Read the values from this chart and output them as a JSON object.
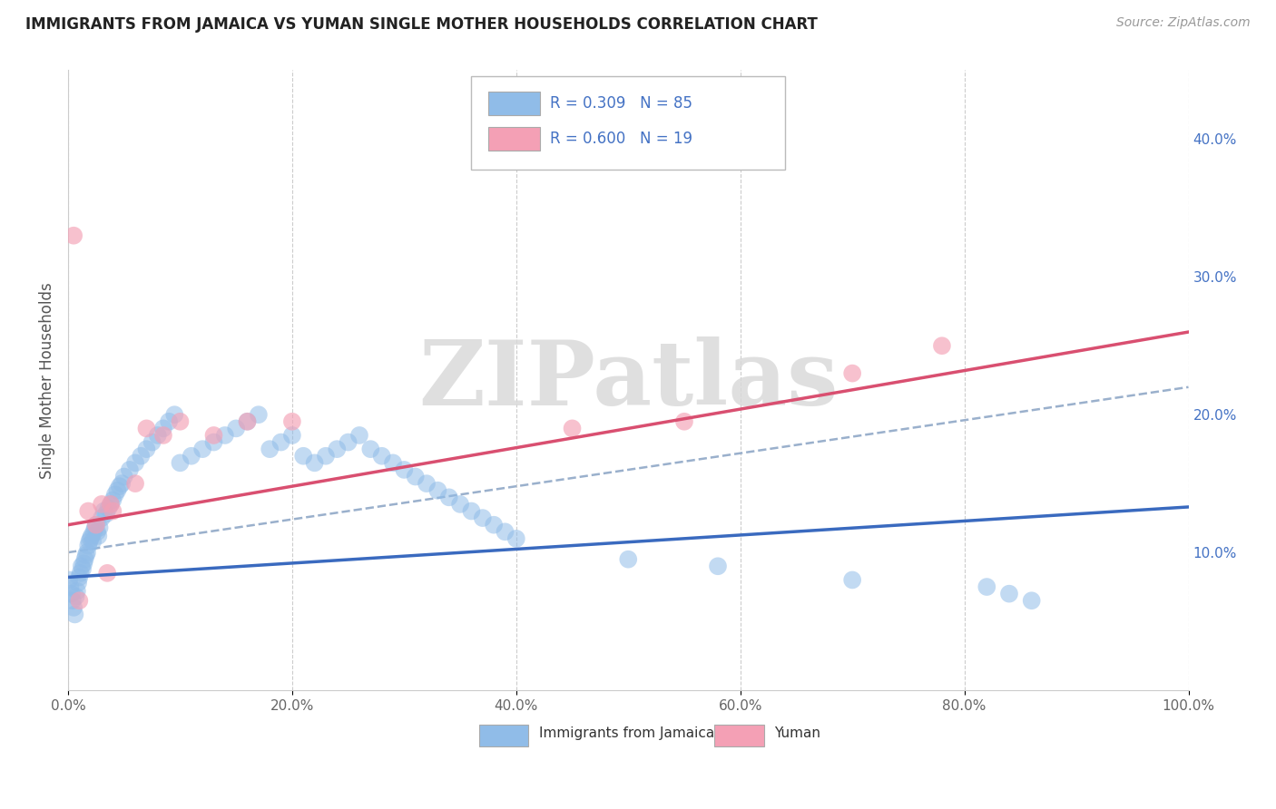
{
  "title": "IMMIGRANTS FROM JAMAICA VS YUMAN SINGLE MOTHER HOUSEHOLDS CORRELATION CHART",
  "source": "Source: ZipAtlas.com",
  "ylabel": "Single Mother Households",
  "legend_label1": "Immigrants from Jamaica",
  "legend_label2": "Yuman",
  "R1": 0.309,
  "N1": 85,
  "R2": 0.6,
  "N2": 19,
  "color_blue": "#90bce8",
  "color_pink": "#f4a0b5",
  "color_blue_line": "#3a6abf",
  "color_pink_line": "#d94f70",
  "color_dash": "#9ab0cc",
  "xlim": [
    0,
    1.0
  ],
  "ylim": [
    0,
    0.45
  ],
  "xticks": [
    0.0,
    0.2,
    0.4,
    0.6,
    0.8,
    1.0
  ],
  "xticklabels": [
    "0.0%",
    "20.0%",
    "40.0%",
    "60.0%",
    "80.0%",
    "100.0%"
  ],
  "yticks_left": [],
  "yticks_right": [
    0.1,
    0.2,
    0.3,
    0.4
  ],
  "yticklabels_right": [
    "10.0%",
    "20.0%",
    "30.0%",
    "40.0%"
  ],
  "watermark": "ZIPatlas",
  "background_color": "#ffffff",
  "jamaica_x": [
    0.001,
    0.002,
    0.003,
    0.004,
    0.005,
    0.006,
    0.007,
    0.008,
    0.009,
    0.01,
    0.011,
    0.012,
    0.013,
    0.014,
    0.015,
    0.016,
    0.017,
    0.018,
    0.019,
    0.02,
    0.021,
    0.022,
    0.023,
    0.024,
    0.025,
    0.026,
    0.027,
    0.028,
    0.03,
    0.032,
    0.034,
    0.036,
    0.038,
    0.04,
    0.042,
    0.044,
    0.046,
    0.048,
    0.05,
    0.055,
    0.06,
    0.065,
    0.07,
    0.075,
    0.08,
    0.085,
    0.09,
    0.095,
    0.1,
    0.11,
    0.12,
    0.13,
    0.14,
    0.15,
    0.16,
    0.17,
    0.18,
    0.19,
    0.2,
    0.21,
    0.22,
    0.23,
    0.24,
    0.25,
    0.26,
    0.27,
    0.28,
    0.29,
    0.3,
    0.31,
    0.32,
    0.33,
    0.34,
    0.35,
    0.36,
    0.37,
    0.38,
    0.39,
    0.4,
    0.5,
    0.58,
    0.7,
    0.82,
    0.84,
    0.86
  ],
  "jamaica_y": [
    0.08,
    0.075,
    0.07,
    0.065,
    0.06,
    0.055,
    0.068,
    0.072,
    0.078,
    0.082,
    0.085,
    0.09,
    0.088,
    0.092,
    0.095,
    0.098,
    0.1,
    0.105,
    0.108,
    0.11,
    0.112,
    0.108,
    0.115,
    0.118,
    0.12,
    0.115,
    0.112,
    0.118,
    0.125,
    0.13,
    0.128,
    0.132,
    0.135,
    0.138,
    0.142,
    0.145,
    0.148,
    0.15,
    0.155,
    0.16,
    0.165,
    0.17,
    0.175,
    0.18,
    0.185,
    0.19,
    0.195,
    0.2,
    0.165,
    0.17,
    0.175,
    0.18,
    0.185,
    0.19,
    0.195,
    0.2,
    0.175,
    0.18,
    0.185,
    0.17,
    0.165,
    0.17,
    0.175,
    0.18,
    0.185,
    0.175,
    0.17,
    0.165,
    0.16,
    0.155,
    0.15,
    0.145,
    0.14,
    0.135,
    0.13,
    0.125,
    0.12,
    0.115,
    0.11,
    0.095,
    0.09,
    0.08,
    0.075,
    0.07,
    0.065
  ],
  "yuman_x": [
    0.005,
    0.01,
    0.018,
    0.025,
    0.03,
    0.035,
    0.038,
    0.04,
    0.06,
    0.07,
    0.085,
    0.1,
    0.13,
    0.16,
    0.2,
    0.45,
    0.55,
    0.7,
    0.78
  ],
  "yuman_y": [
    0.33,
    0.065,
    0.13,
    0.12,
    0.135,
    0.085,
    0.135,
    0.13,
    0.15,
    0.19,
    0.185,
    0.195,
    0.185,
    0.195,
    0.195,
    0.19,
    0.195,
    0.23,
    0.25
  ],
  "blue_line_x0": 0.0,
  "blue_line_y0": 0.082,
  "blue_line_x1": 1.0,
  "blue_line_y1": 0.133,
  "pink_line_x0": 0.0,
  "pink_line_y0": 0.12,
  "pink_line_x1": 1.0,
  "pink_line_y1": 0.26,
  "dash_line_x0": 0.0,
  "dash_line_y0": 0.1,
  "dash_line_x1": 1.0,
  "dash_line_y1": 0.22
}
